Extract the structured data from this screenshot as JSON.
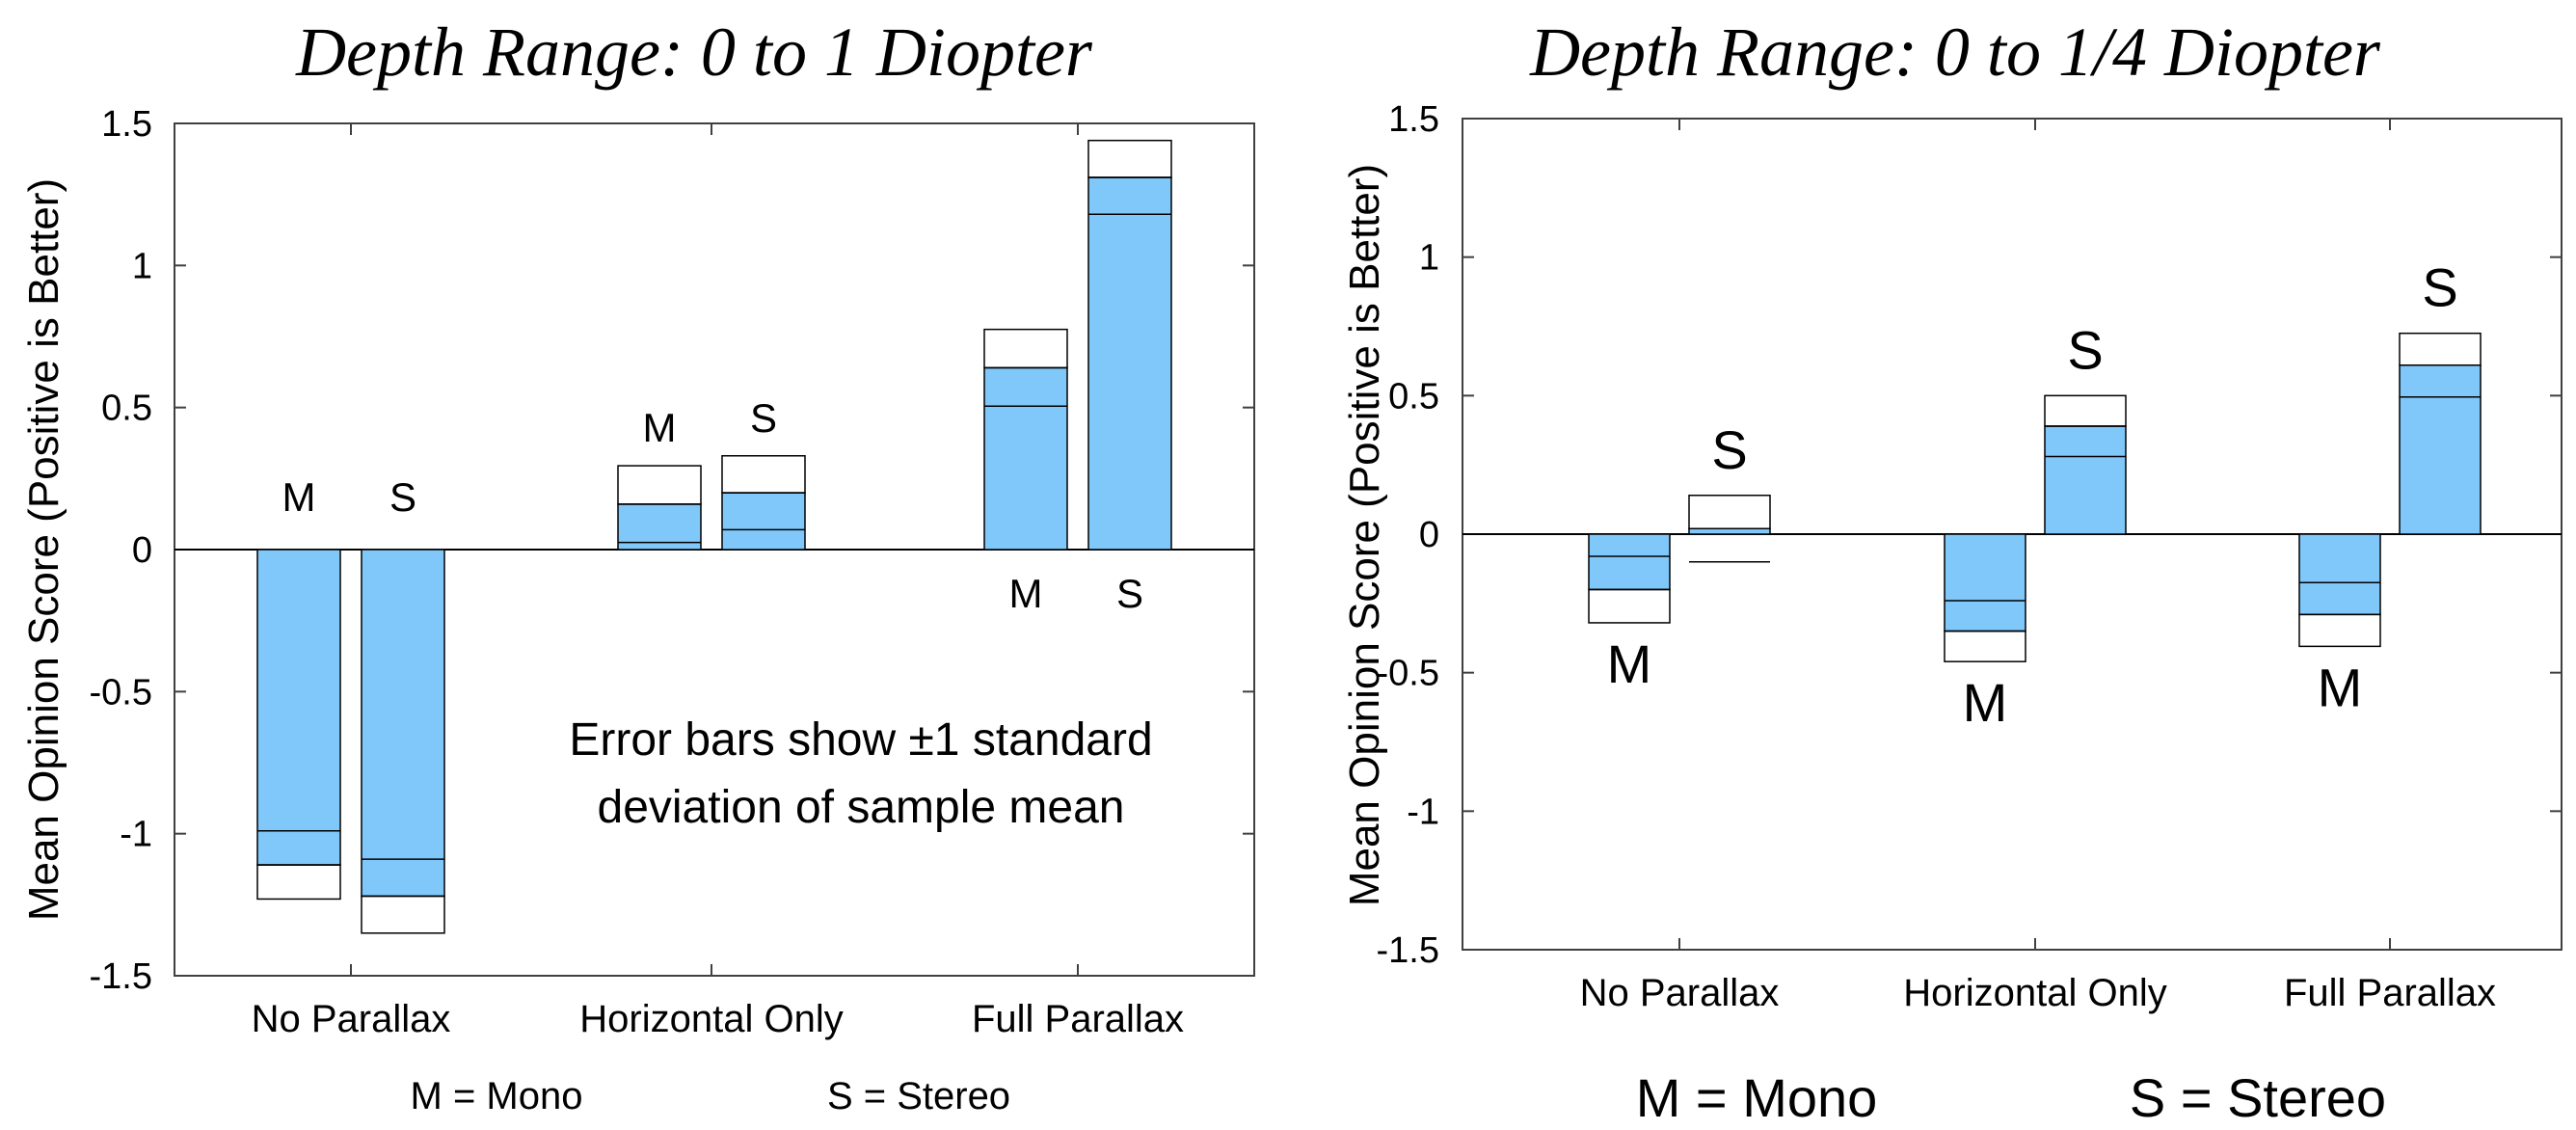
{
  "chart_data": [
    {
      "type": "bar",
      "title": "Depth Range: 0 to 1 Diopter",
      "ylabel": "Mean Opinion Score (Positive is Better)",
      "ylim": [
        -1.5,
        1.5
      ],
      "yticks": [
        "1.5",
        "1",
        "0.5",
        "0",
        "-0.5",
        "-1",
        "-1.5"
      ],
      "categories": [
        "No Parallax",
        "Horizontal Only",
        "Full Parallax"
      ],
      "bar_labels": [
        "M",
        "S"
      ],
      "series": [
        {
          "name": "Mono",
          "values": [
            -1.11,
            0.16,
            0.64
          ],
          "error": [
            0.12,
            0.135,
            0.135
          ]
        },
        {
          "name": "Stereo",
          "values": [
            -1.22,
            0.2,
            1.31
          ],
          "error": [
            0.13,
            0.13,
            0.13
          ]
        }
      ],
      "annotation": [
        "Error bars show ±1 standard",
        "deviation of sample mean"
      ],
      "legend": [
        "M = Mono",
        "S = Stereo"
      ],
      "grid": false,
      "bar_color": "#80c8fa"
    },
    {
      "type": "bar",
      "title": "Depth Range: 0 to 1/4 Diopter",
      "ylabel": "Mean Opinion Score (Positive is Better)",
      "ylim": [
        -1.5,
        1.5
      ],
      "yticks": [
        "1.5",
        "1",
        "0.5",
        "0",
        "-0.5",
        "-1",
        "-1.5"
      ],
      "categories": [
        "No Parallax",
        "Horizontal Only",
        "Full Parallax"
      ],
      "bar_labels": [
        "M",
        "S"
      ],
      "series": [
        {
          "name": "Mono",
          "values": [
            -0.2,
            -0.35,
            -0.29
          ],
          "error": [
            0.12,
            0.11,
            0.115
          ]
        },
        {
          "name": "Stereo",
          "values": [
            0.02,
            0.39,
            0.61
          ],
          "error": [
            0.12,
            0.11,
            0.115
          ]
        }
      ],
      "legend": [
        "M = Mono",
        "S = Stereo"
      ],
      "grid": false,
      "bar_color": "#80c8fa"
    }
  ]
}
